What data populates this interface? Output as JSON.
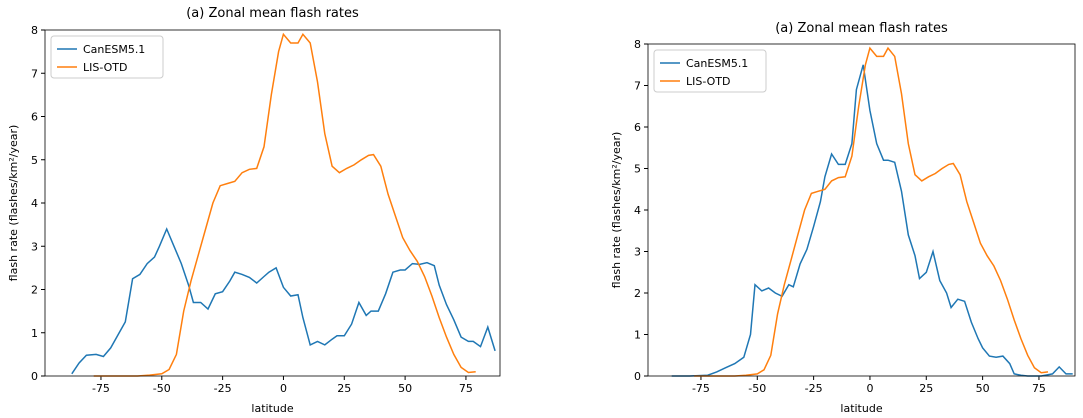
{
  "chart_data": [
    {
      "type": "line",
      "title": "(a) Zonal mean flash rates",
      "xlabel": "latitude",
      "ylabel": "flash rate (flashes/km²/year)",
      "xlim": [
        -98,
        89
      ],
      "ylim": [
        0,
        8
      ],
      "xticks": [
        -75,
        -50,
        -25,
        0,
        25,
        50,
        75
      ],
      "yticks": [
        0,
        1,
        2,
        3,
        4,
        5,
        6,
        7,
        8
      ],
      "legend": "upper left",
      "series": [
        {
          "name": "CanESM5.1",
          "color": "#1f77b4",
          "x": [
            -87,
            -84,
            -81,
            -77,
            -74,
            -71,
            -68,
            -65,
            -62,
            -59,
            -56,
            -53,
            -51,
            -48,
            -45,
            -42,
            -39,
            -37,
            -34,
            -31,
            -28,
            -25,
            -22,
            -20,
            -17,
            -14,
            -11,
            -8,
            -6,
            -3,
            0,
            3,
            6,
            8,
            11,
            14,
            17,
            20,
            22,
            25,
            28,
            31,
            34,
            36,
            39,
            42,
            45,
            48,
            50,
            53,
            56,
            59,
            62,
            64,
            67,
            70,
            73,
            76,
            78,
            81,
            84,
            87
          ],
          "values": [
            0.05,
            0.3,
            0.48,
            0.5,
            0.45,
            0.65,
            0.95,
            1.25,
            2.25,
            2.35,
            2.6,
            2.75,
            3.0,
            3.4,
            3.0,
            2.6,
            2.1,
            1.7,
            1.7,
            1.55,
            1.9,
            1.95,
            2.2,
            2.4,
            2.35,
            2.28,
            2.15,
            2.3,
            2.4,
            2.5,
            2.05,
            1.85,
            1.88,
            1.35,
            0.72,
            0.8,
            0.72,
            0.85,
            0.93,
            0.93,
            1.2,
            1.7,
            1.4,
            1.5,
            1.5,
            1.9,
            2.4,
            2.45,
            2.45,
            2.6,
            2.58,
            2.62,
            2.55,
            2.1,
            1.65,
            1.3,
            0.9,
            0.8,
            0.8,
            0.68,
            1.13,
            0.58
          ]
        },
        {
          "name": "LIS-OTD",
          "color": "#ff7f0e",
          "x": [
            -78,
            -70,
            -60,
            -55,
            -50,
            -47,
            -44,
            -41,
            -38,
            -35,
            -32,
            -29,
            -26,
            -23,
            -20,
            -17,
            -14,
            -11,
            -8,
            -5,
            -2,
            0,
            3,
            6,
            8,
            11,
            14,
            17,
            20,
            23,
            26,
            29,
            32,
            35,
            37,
            40,
            43,
            46,
            49,
            52,
            55,
            58,
            61,
            64,
            67,
            70,
            73,
            76,
            79
          ],
          "values": [
            0,
            0,
            0,
            0.02,
            0.05,
            0.15,
            0.5,
            1.5,
            2.2,
            2.8,
            3.4,
            4.0,
            4.4,
            4.45,
            4.5,
            4.7,
            4.78,
            4.8,
            5.3,
            6.5,
            7.5,
            7.9,
            7.7,
            7.7,
            7.9,
            7.7,
            6.8,
            5.6,
            4.85,
            4.7,
            4.8,
            4.88,
            5.0,
            5.1,
            5.12,
            4.85,
            4.2,
            3.7,
            3.2,
            2.9,
            2.65,
            2.3,
            1.85,
            1.35,
            0.9,
            0.5,
            0.2,
            0.08,
            0.1
          ]
        }
      ]
    },
    {
      "type": "line",
      "title": "(a) Zonal mean flash rates",
      "xlabel": "latitude",
      "ylabel": "flash rate (flashes/km²/year)",
      "xlim": [
        -98.5,
        91
      ],
      "ylim": [
        0,
        8
      ],
      "xticks": [
        -75,
        -50,
        -25,
        0,
        25,
        50,
        75
      ],
      "yticks": [
        0,
        1,
        2,
        3,
        4,
        5,
        6,
        7,
        8
      ],
      "legend": "upper left",
      "series": [
        {
          "name": "CanESM5.1",
          "color": "#1f77b4",
          "x": [
            -88,
            -80,
            -72,
            -68,
            -64,
            -60,
            -56,
            -53,
            -51,
            -48,
            -45,
            -42,
            -39,
            -36,
            -34,
            -31,
            -28,
            -25,
            -22,
            -20,
            -17,
            -14,
            -11,
            -8,
            -6,
            -3,
            0,
            3,
            6,
            8,
            11,
            14,
            17,
            20,
            22,
            25,
            28,
            31,
            34,
            36,
            39,
            42,
            45,
            48,
            50,
            53,
            56,
            59,
            62,
            64,
            67,
            70,
            76,
            81,
            84,
            87,
            90
          ],
          "values": [
            0,
            0,
            0.02,
            0.1,
            0.2,
            0.3,
            0.45,
            1.0,
            2.2,
            2.05,
            2.12,
            2.0,
            1.92,
            2.2,
            2.15,
            2.7,
            3.05,
            3.6,
            4.2,
            4.8,
            5.35,
            5.1,
            5.1,
            5.6,
            6.9,
            7.5,
            6.4,
            5.6,
            5.2,
            5.2,
            5.15,
            4.45,
            3.4,
            2.9,
            2.35,
            2.5,
            3.0,
            2.3,
            2.0,
            1.65,
            1.85,
            1.8,
            1.3,
            0.9,
            0.68,
            0.48,
            0.45,
            0.48,
            0.3,
            0.05,
            0.02,
            0,
            0,
            0.05,
            0.22,
            0.05,
            0.05
          ]
        },
        {
          "name": "LIS-OTD",
          "color": "#ff7f0e",
          "x": [
            -78,
            -70,
            -60,
            -55,
            -50,
            -47,
            -44,
            -41,
            -38,
            -35,
            -32,
            -29,
            -26,
            -23,
            -20,
            -17,
            -14,
            -11,
            -8,
            -5,
            -2,
            0,
            3,
            6,
            8,
            11,
            14,
            17,
            20,
            23,
            26,
            29,
            32,
            35,
            37,
            40,
            43,
            46,
            49,
            52,
            55,
            58,
            61,
            64,
            67,
            70,
            73,
            76,
            79
          ],
          "values": [
            0,
            0,
            0,
            0.02,
            0.05,
            0.15,
            0.5,
            1.5,
            2.2,
            2.8,
            3.4,
            4.0,
            4.4,
            4.45,
            4.5,
            4.7,
            4.78,
            4.8,
            5.3,
            6.5,
            7.5,
            7.9,
            7.7,
            7.7,
            7.9,
            7.7,
            6.8,
            5.6,
            4.85,
            4.7,
            4.8,
            4.88,
            5.0,
            5.1,
            5.12,
            4.85,
            4.2,
            3.7,
            3.2,
            2.9,
            2.65,
            2.3,
            1.85,
            1.35,
            0.9,
            0.5,
            0.2,
            0.08,
            0.1
          ]
        }
      ]
    }
  ]
}
